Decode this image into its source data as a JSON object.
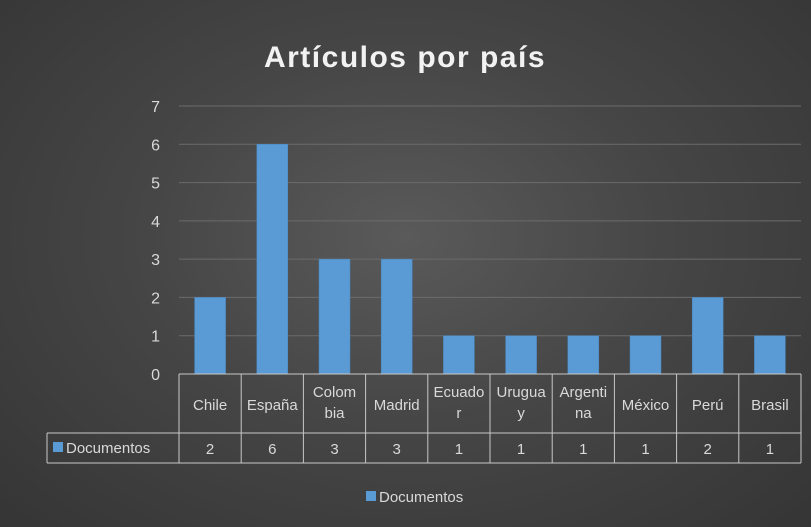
{
  "chart_data": {
    "type": "bar",
    "title": "Artículos por país",
    "categories": [
      [
        "Chile"
      ],
      [
        "España"
      ],
      [
        "Colom",
        "bia"
      ],
      [
        "Madrid"
      ],
      [
        "Ecuado",
        "r"
      ],
      [
        "Urugua",
        "y"
      ],
      [
        "Argenti",
        "na"
      ],
      [
        "México"
      ],
      [
        "Perú"
      ],
      [
        "Brasil"
      ]
    ],
    "series": [
      {
        "name": "Documentos",
        "values": [
          2,
          6,
          3,
          3,
          1,
          1,
          1,
          1,
          2,
          1
        ]
      }
    ],
    "ylim": [
      0,
      7
    ],
    "yticks": [
      0,
      1,
      2,
      3,
      4,
      5,
      6,
      7
    ],
    "grid": true,
    "data_table": true,
    "legend": "bottom",
    "colors": {
      "bar": "#5b9bd5",
      "bar_edge": "#4a86bd",
      "grid": "#6b6b6b",
      "text": "#d9d9d9",
      "title": "#f2f2f2"
    }
  }
}
